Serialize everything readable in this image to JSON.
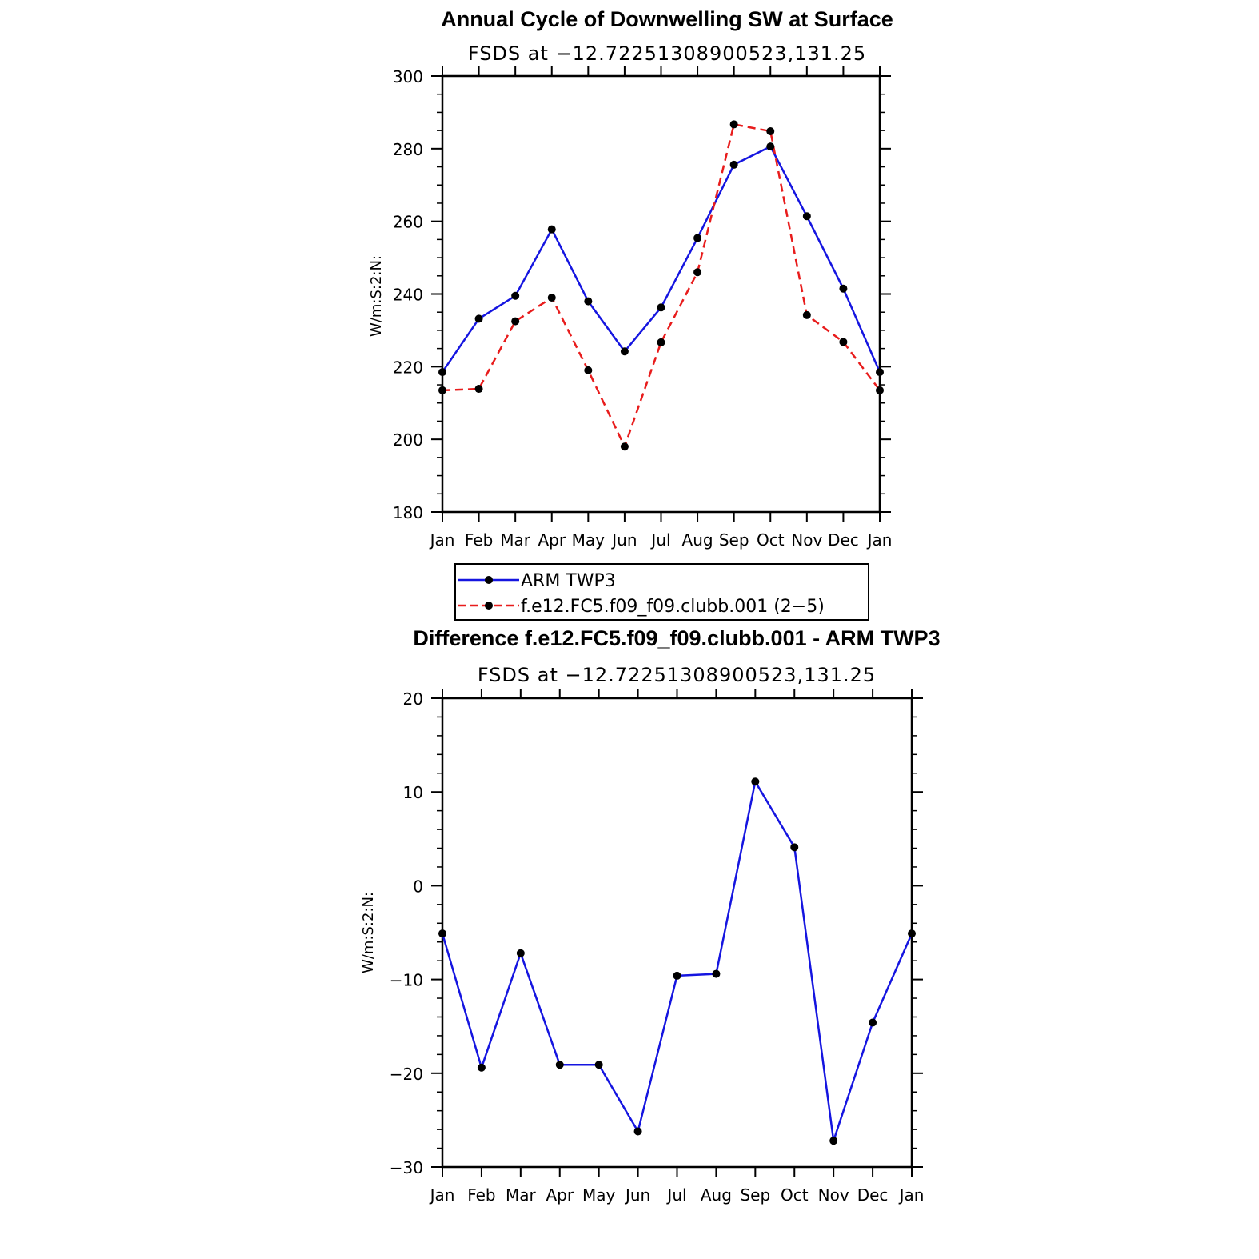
{
  "colors": {
    "series1": "#1515e0",
    "series2": "#e81c1c",
    "marker": "#000000",
    "axis": "#000000"
  },
  "chart_data": [
    {
      "type": "line",
      "title": "Annual Cycle of Downwelling SW at Surface",
      "subtitle": "FSDS at −12.72251308900523,131.25",
      "ylabel": "W/m:S:2:N:",
      "xlabel": "",
      "categories": [
        "Jan",
        "Feb",
        "Mar",
        "Apr",
        "May",
        "Jun",
        "Jul",
        "Aug",
        "Sep",
        "Oct",
        "Nov",
        "Dec",
        "Jan"
      ],
      "ylim": [
        180,
        300
      ],
      "yticks": [
        180,
        200,
        220,
        240,
        260,
        280,
        300
      ],
      "ytick_labels": [
        "180",
        "200",
        "220",
        "240",
        "260",
        "280",
        "300"
      ],
      "series": [
        {
          "name": "ARM TWP3",
          "style": "solid",
          "values": [
            218.5,
            233.2,
            239.5,
            257.8,
            238.0,
            224.2,
            236.3,
            255.4,
            275.6,
            280.6,
            261.4,
            241.5,
            218.5
          ]
        },
        {
          "name": "f.e12.FC5.f09_f09.clubb.001 (2−5)",
          "style": "dashed",
          "values": [
            213.5,
            213.9,
            232.5,
            239.0,
            219.0,
            198.0,
            226.7,
            246.0,
            286.7,
            284.8,
            234.2,
            226.8,
            213.5
          ]
        }
      ],
      "legend": {
        "position": "below",
        "entries": [
          "ARM TWP3",
          "f.e12.FC5.f09_f09.clubb.001 (2−5)"
        ]
      }
    },
    {
      "type": "line",
      "title": "Difference f.e12.FC5.f09_f09.clubb.001 - ARM TWP3",
      "subtitle": "FSDS at −12.72251308900523,131.25",
      "ylabel": "W/m:S:2:N:",
      "xlabel": "",
      "categories": [
        "Jan",
        "Feb",
        "Mar",
        "Apr",
        "May",
        "Jun",
        "Jul",
        "Aug",
        "Sep",
        "Oct",
        "Nov",
        "Dec",
        "Jan"
      ],
      "ylim": [
        -30,
        20
      ],
      "yticks": [
        -30,
        -20,
        -10,
        0,
        10,
        20
      ],
      "ytick_labels": [
        "−30",
        "−20",
        "−10",
        "0",
        "10",
        "20"
      ],
      "series": [
        {
          "name": "Difference",
          "style": "solid",
          "values": [
            -5.1,
            -19.4,
            -7.2,
            -19.1,
            -19.1,
            -26.2,
            -9.6,
            -9.4,
            11.1,
            4.1,
            -27.2,
            -14.6,
            -5.1
          ]
        }
      ]
    }
  ]
}
